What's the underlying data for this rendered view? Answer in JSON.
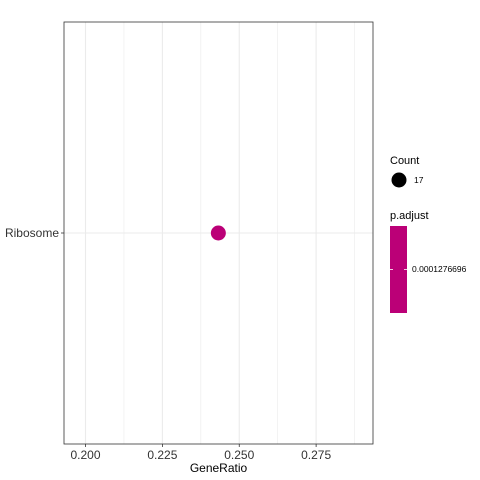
{
  "chart_data": {
    "type": "scatter",
    "title": "",
    "xlabel": "GeneRatio",
    "ylabel": "",
    "xlim": [
      0.193,
      0.2935
    ],
    "x_ticks": [
      0.2,
      0.225,
      0.25,
      0.275
    ],
    "x_tick_labels": [
      "0.200",
      "0.225",
      "0.250",
      "0.275"
    ],
    "categories": [
      "Ribosome"
    ],
    "grid": true,
    "points": [
      {
        "category": "Ribosome",
        "x": 0.2432,
        "count": 17,
        "p_adjust": 0.0001276696,
        "color": "#BB0077"
      }
    ],
    "legend": {
      "placement": "right",
      "size_title": "Count",
      "size_values": [
        "17"
      ],
      "color_title": "p.adjust",
      "color_values": [
        "0.0001276696"
      ],
      "color": "#BB0077"
    }
  }
}
